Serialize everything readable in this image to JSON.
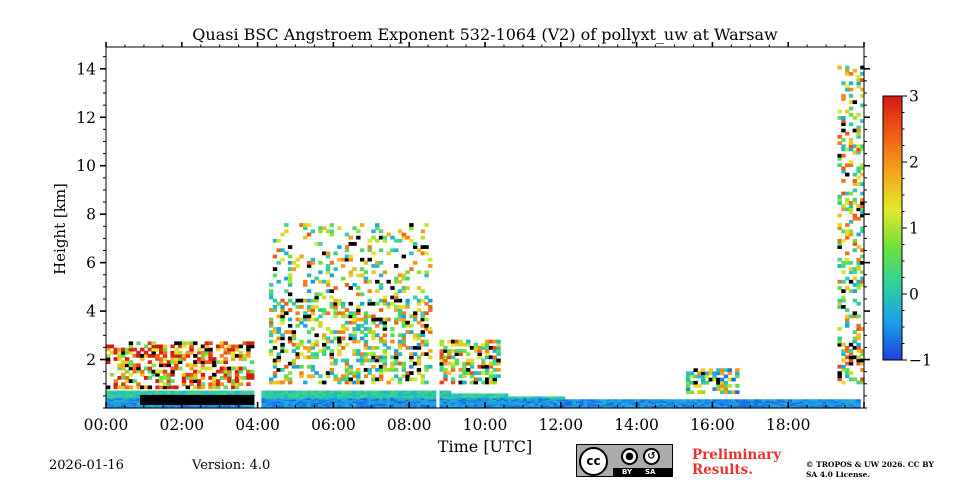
{
  "chart_data": {
    "type": "heatmap",
    "title": "Quasi BSC Angstroem Exponent 532-1064 (V2) of pollyxt_uw at Warsaw",
    "xlabel": "Time [UTC]",
    "ylabel": "Height [km]",
    "x_unit": "hours UTC",
    "xlim": [
      0,
      20
    ],
    "ylim": [
      0,
      14.9
    ],
    "x_ticks": [
      {
        "value": 0,
        "label": "00:00"
      },
      {
        "value": 2,
        "label": "02:00"
      },
      {
        "value": 4,
        "label": "04:00"
      },
      {
        "value": 6,
        "label": "06:00"
      },
      {
        "value": 8,
        "label": "08:00"
      },
      {
        "value": 10,
        "label": "10:00"
      },
      {
        "value": 12,
        "label": "12:00"
      },
      {
        "value": 14,
        "label": "14:00"
      },
      {
        "value": 16,
        "label": "16:00"
      },
      {
        "value": 18,
        "label": "18:00"
      }
    ],
    "y_ticks": [
      {
        "value": 2,
        "label": "2"
      },
      {
        "value": 4,
        "label": "4"
      },
      {
        "value": 6,
        "label": "6"
      },
      {
        "value": 8,
        "label": "8"
      },
      {
        "value": 10,
        "label": "10"
      },
      {
        "value": 12,
        "label": "12"
      },
      {
        "value": 14,
        "label": "14"
      }
    ],
    "colorbar": {
      "range": [
        -1,
        3
      ],
      "ticks": [
        {
          "value": 3,
          "label": "3"
        },
        {
          "value": 2,
          "label": "2"
        },
        {
          "value": 1,
          "label": "1"
        },
        {
          "value": 0,
          "label": "0"
        },
        {
          "value": -1,
          "label": "−1"
        }
      ],
      "colors": [
        "#1f3fe0",
        "#1a9fe8",
        "#2fd0a0",
        "#6fe03a",
        "#e6e82a",
        "#f5a41a",
        "#f05a18",
        "#d41a12"
      ]
    },
    "regions": [
      {
        "name": "aerosol layer near ground",
        "t0": 0.0,
        "t1": 19.9,
        "h0": 0.0,
        "h1": 0.7,
        "value": 0.0
      },
      {
        "name": "low-level black band",
        "t0": 0.9,
        "t1": 4.0,
        "h0": 0.15,
        "h1": 0.45,
        "value": -9
      },
      {
        "name": "morning boundary layer mixture",
        "t0": 0.0,
        "t1": 3.9,
        "h0": 0.8,
        "h1": 2.7,
        "value": 1.8
      },
      {
        "name": "broken cloud/aerosol field",
        "t0": 4.3,
        "t1": 8.5,
        "h0": 1.0,
        "h1": 7.5,
        "value": 0.9
      },
      {
        "name": "residual layer",
        "t0": 8.8,
        "t1": 10.3,
        "h0": 1.0,
        "h1": 2.8,
        "value": 1.1
      },
      {
        "name": "afternoon layer",
        "t0": 15.3,
        "t1": 16.7,
        "h0": 0.6,
        "h1": 1.6,
        "value": 0.6
      },
      {
        "name": "evening column",
        "t0": 19.3,
        "t1": 19.95,
        "h0": 1.0,
        "h1": 14.1,
        "value": 1.0
      }
    ],
    "data_gaps": [
      {
        "t0": 3.9,
        "t1": 4.1
      },
      {
        "t0": 8.6,
        "t1": 8.75
      }
    ]
  },
  "footer": {
    "date": "2026-01-16",
    "version": "Version: 4.0",
    "preliminary": "Preliminary Results.",
    "copyright": "© TROPOS & UW 2026. CC BY SA 4.0 License.",
    "license_badge": {
      "cc": "cc",
      "by": "BY",
      "sa": "SA"
    }
  }
}
